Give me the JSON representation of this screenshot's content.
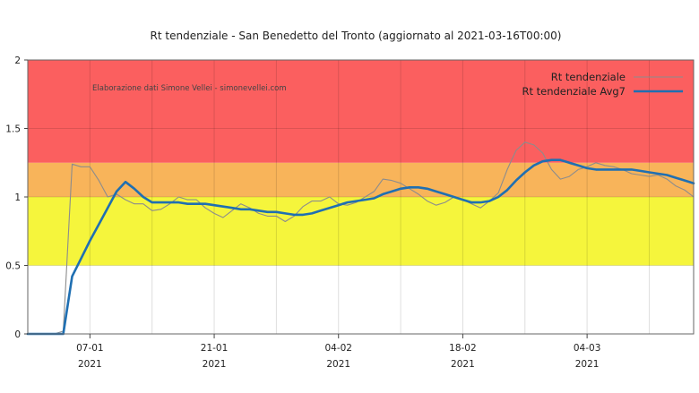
{
  "chart_data": {
    "type": "line",
    "title": "Rt tendenziale - San Benedetto del Tronto (aggiornato al 2021-03-16T00:00)",
    "credit": "Elaborazione dati Simone Vellei - simonevellei.com",
    "xlabel": "",
    "ylabel": "",
    "ylim": [
      0,
      2
    ],
    "y_ticks": [
      "0",
      "0.5",
      "1",
      "1.5",
      "2"
    ],
    "x_range": [
      "2020-12-31",
      "2021-03-16"
    ],
    "x_ticks": [
      {
        "date": "2021-01-07",
        "label": "07-01",
        "year": "2021"
      },
      {
        "date": "2021-01-21",
        "label": "21-01",
        "year": "2021"
      },
      {
        "date": "2021-02-04",
        "label": "04-02",
        "year": "2021"
      },
      {
        "date": "2021-02-18",
        "label": "18-02",
        "year": "2021"
      },
      {
        "date": "2021-03-04",
        "label": "04-03",
        "year": "2021"
      }
    ],
    "bands": [
      {
        "from": 0,
        "to": 0.5,
        "color": "#ffffff"
      },
      {
        "from": 0.5,
        "to": 1.0,
        "color": "#f5f53c"
      },
      {
        "from": 1.0,
        "to": 1.25,
        "color": "#f8b45a"
      },
      {
        "from": 1.25,
        "to": 2.0,
        "color": "#fb5f5f"
      }
    ],
    "legend_position": "top-right",
    "series": [
      {
        "name": "Rt tendenziale",
        "color": "#8c8c8c",
        "points": [
          [
            "2020-12-31",
            0
          ],
          [
            "2021-01-03",
            0
          ],
          [
            "2021-01-04",
            0.02
          ],
          [
            "2021-01-05",
            1.24
          ],
          [
            "2021-01-06",
            1.22
          ],
          [
            "2021-01-07",
            1.22
          ],
          [
            "2021-01-08",
            1.12
          ],
          [
            "2021-01-09",
            1.0
          ],
          [
            "2021-01-10",
            1.02
          ],
          [
            "2021-01-11",
            0.98
          ],
          [
            "2021-01-12",
            0.95
          ],
          [
            "2021-01-13",
            0.95
          ],
          [
            "2021-01-14",
            0.9
          ],
          [
            "2021-01-15",
            0.91
          ],
          [
            "2021-01-16",
            0.95
          ],
          [
            "2021-01-17",
            1.0
          ],
          [
            "2021-01-18",
            0.98
          ],
          [
            "2021-01-19",
            0.98
          ],
          [
            "2021-01-20",
            0.92
          ],
          [
            "2021-01-21",
            0.88
          ],
          [
            "2021-01-22",
            0.85
          ],
          [
            "2021-01-23",
            0.9
          ],
          [
            "2021-01-24",
            0.95
          ],
          [
            "2021-01-25",
            0.92
          ],
          [
            "2021-01-26",
            0.88
          ],
          [
            "2021-01-27",
            0.86
          ],
          [
            "2021-01-28",
            0.86
          ],
          [
            "2021-01-29",
            0.82
          ],
          [
            "2021-01-30",
            0.86
          ],
          [
            "2021-01-31",
            0.93
          ],
          [
            "2021-02-01",
            0.97
          ],
          [
            "2021-02-02",
            0.97
          ],
          [
            "2021-02-03",
            1.0
          ],
          [
            "2021-02-04",
            0.95
          ],
          [
            "2021-02-05",
            0.94
          ],
          [
            "2021-02-06",
            0.96
          ],
          [
            "2021-02-07",
            1.0
          ],
          [
            "2021-02-08",
            1.04
          ],
          [
            "2021-02-09",
            1.13
          ],
          [
            "2021-02-10",
            1.12
          ],
          [
            "2021-02-11",
            1.1
          ],
          [
            "2021-02-12",
            1.06
          ],
          [
            "2021-02-13",
            1.02
          ],
          [
            "2021-02-14",
            0.97
          ],
          [
            "2021-02-15",
            0.94
          ],
          [
            "2021-02-16",
            0.96
          ],
          [
            "2021-02-17",
            1.0
          ],
          [
            "2021-02-18",
            0.98
          ],
          [
            "2021-02-19",
            0.95
          ],
          [
            "2021-02-20",
            0.92
          ],
          [
            "2021-02-21",
            0.97
          ],
          [
            "2021-02-22",
            1.03
          ],
          [
            "2021-02-23",
            1.2
          ],
          [
            "2021-02-24",
            1.34
          ],
          [
            "2021-02-25",
            1.4
          ],
          [
            "2021-02-26",
            1.38
          ],
          [
            "2021-02-27",
            1.32
          ],
          [
            "2021-02-28",
            1.2
          ],
          [
            "2021-03-01",
            1.13
          ],
          [
            "2021-03-02",
            1.15
          ],
          [
            "2021-03-03",
            1.2
          ],
          [
            "2021-03-04",
            1.22
          ],
          [
            "2021-03-05",
            1.25
          ],
          [
            "2021-03-06",
            1.23
          ],
          [
            "2021-03-07",
            1.22
          ],
          [
            "2021-03-08",
            1.2
          ],
          [
            "2021-03-09",
            1.17
          ],
          [
            "2021-03-10",
            1.16
          ],
          [
            "2021-03-11",
            1.15
          ],
          [
            "2021-03-12",
            1.16
          ],
          [
            "2021-03-13",
            1.13
          ],
          [
            "2021-03-14",
            1.08
          ],
          [
            "2021-03-15",
            1.05
          ],
          [
            "2021-03-16",
            1.0
          ]
        ]
      },
      {
        "name": "Rt tendenziale Avg7",
        "color": "#1f6fb2",
        "points": [
          [
            "2020-12-31",
            0
          ],
          [
            "2021-01-03",
            0
          ],
          [
            "2021-01-04",
            0
          ],
          [
            "2021-01-05",
            0.42
          ],
          [
            "2021-01-06",
            0.55
          ],
          [
            "2021-01-07",
            0.68
          ],
          [
            "2021-01-08",
            0.8
          ],
          [
            "2021-01-09",
            0.92
          ],
          [
            "2021-01-10",
            1.04
          ],
          [
            "2021-01-11",
            1.11
          ],
          [
            "2021-01-12",
            1.06
          ],
          [
            "2021-01-13",
            1.0
          ],
          [
            "2021-01-14",
            0.96
          ],
          [
            "2021-01-15",
            0.96
          ],
          [
            "2021-01-16",
            0.96
          ],
          [
            "2021-01-17",
            0.96
          ],
          [
            "2021-01-18",
            0.95
          ],
          [
            "2021-01-19",
            0.95
          ],
          [
            "2021-01-20",
            0.95
          ],
          [
            "2021-01-21",
            0.94
          ],
          [
            "2021-01-22",
            0.93
          ],
          [
            "2021-01-23",
            0.92
          ],
          [
            "2021-01-24",
            0.91
          ],
          [
            "2021-01-25",
            0.91
          ],
          [
            "2021-01-26",
            0.9
          ],
          [
            "2021-01-27",
            0.89
          ],
          [
            "2021-01-28",
            0.89
          ],
          [
            "2021-01-29",
            0.88
          ],
          [
            "2021-01-30",
            0.87
          ],
          [
            "2021-01-31",
            0.87
          ],
          [
            "2021-02-01",
            0.88
          ],
          [
            "2021-02-02",
            0.9
          ],
          [
            "2021-02-03",
            0.92
          ],
          [
            "2021-02-04",
            0.94
          ],
          [
            "2021-02-05",
            0.96
          ],
          [
            "2021-02-06",
            0.97
          ],
          [
            "2021-02-07",
            0.98
          ],
          [
            "2021-02-08",
            0.99
          ],
          [
            "2021-02-09",
            1.02
          ],
          [
            "2021-02-10",
            1.04
          ],
          [
            "2021-02-11",
            1.06
          ],
          [
            "2021-02-12",
            1.07
          ],
          [
            "2021-02-13",
            1.07
          ],
          [
            "2021-02-14",
            1.06
          ],
          [
            "2021-02-15",
            1.04
          ],
          [
            "2021-02-16",
            1.02
          ],
          [
            "2021-02-17",
            1.0
          ],
          [
            "2021-02-18",
            0.98
          ],
          [
            "2021-02-19",
            0.96
          ],
          [
            "2021-02-20",
            0.96
          ],
          [
            "2021-02-21",
            0.97
          ],
          [
            "2021-02-22",
            1.0
          ],
          [
            "2021-02-23",
            1.05
          ],
          [
            "2021-02-24",
            1.12
          ],
          [
            "2021-02-25",
            1.18
          ],
          [
            "2021-02-26",
            1.23
          ],
          [
            "2021-02-27",
            1.26
          ],
          [
            "2021-02-28",
            1.27
          ],
          [
            "2021-03-01",
            1.27
          ],
          [
            "2021-03-02",
            1.25
          ],
          [
            "2021-03-03",
            1.23
          ],
          [
            "2021-03-04",
            1.21
          ],
          [
            "2021-03-05",
            1.2
          ],
          [
            "2021-03-06",
            1.2
          ],
          [
            "2021-03-07",
            1.2
          ],
          [
            "2021-03-08",
            1.2
          ],
          [
            "2021-03-09",
            1.2
          ],
          [
            "2021-03-10",
            1.19
          ],
          [
            "2021-03-11",
            1.18
          ],
          [
            "2021-03-12",
            1.17
          ],
          [
            "2021-03-13",
            1.16
          ],
          [
            "2021-03-14",
            1.14
          ],
          [
            "2021-03-15",
            1.12
          ],
          [
            "2021-03-16",
            1.1
          ]
        ]
      }
    ]
  }
}
